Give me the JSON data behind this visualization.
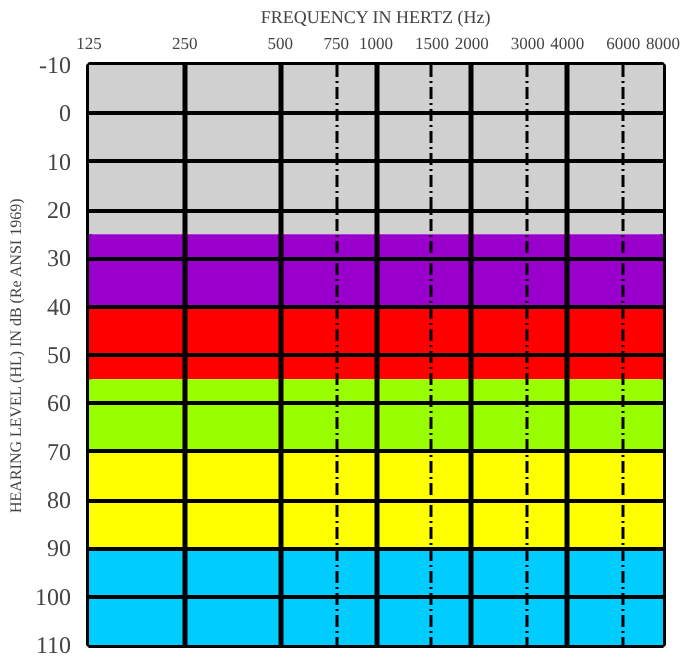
{
  "chart_data": {
    "type": "line",
    "xlabel": "FREQUENCY IN HERTZ (Hz)",
    "ylabel": "HEARING LEVEL (HL) IN dB (Re ANSI 1969)",
    "log": "x",
    "xlim": [
      125,
      8000
    ],
    "xticks": [
      125,
      250,
      500,
      750,
      1000,
      1500,
      2000,
      3000,
      4000,
      6000,
      8000
    ],
    "ylim": [
      110,
      -10
    ],
    "yticks": [
      -10,
      0,
      10,
      20,
      30,
      40,
      50,
      60,
      70,
      80,
      90,
      100,
      110
    ],
    "grid": true,
    "bands": [
      {
        "axis": "y",
        "from": -10,
        "to": 25,
        "color": "#d0d0d0"
      },
      {
        "axis": "y",
        "from": 25,
        "to": 40,
        "color": "#9900cc"
      },
      {
        "axis": "y",
        "from": 40,
        "to": 55,
        "color": "#ff0000"
      },
      {
        "axis": "y",
        "from": 55,
        "to": 70,
        "color": "#99ff00"
      },
      {
        "axis": "y",
        "from": 70,
        "to": 90,
        "color": "#ffff00"
      },
      {
        "axis": "y",
        "from": 90,
        "to": 110,
        "color": "#00ccff"
      }
    ]
  }
}
